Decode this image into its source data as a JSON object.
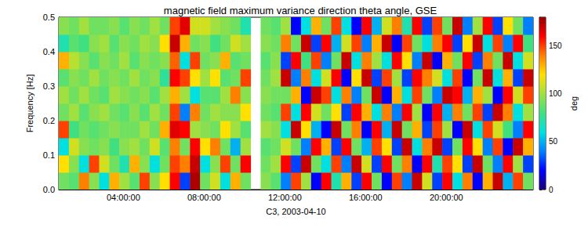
{
  "chart_data": {
    "type": "heatmap",
    "title": "magnetic field maximum variance direction theta angle, GSE",
    "x_label": "C3, 2003-04-10",
    "y_label": "Frequency [Hz]",
    "xlim": [
      0.8,
      24.3
    ],
    "xticks": [
      {
        "value": 4,
        "label": "04:00:00"
      },
      {
        "value": 8,
        "label": "08:00:00"
      },
      {
        "value": 12,
        "label": "12:00:00"
      },
      {
        "value": 16,
        "label": "16:00:00"
      },
      {
        "value": 20,
        "label": "20:00:00"
      }
    ],
    "ylim": [
      0,
      0.5
    ],
    "yticks": [
      {
        "value": 0,
        "label": "0.0"
      },
      0.1,
      0.2,
      0.3,
      0.4,
      0.5
    ],
    "x": [
      1.05,
      1.55,
      2.05,
      2.55,
      3.05,
      3.55,
      4.05,
      4.55,
      5.05,
      5.55,
      6.05,
      6.55,
      7.05,
      7.55,
      8.05,
      8.55,
      9.05,
      9.55,
      10.05,
      10.55,
      11.05,
      11.55,
      12.05,
      12.55,
      13.05,
      13.55,
      14.05,
      14.55,
      15.05,
      15.55,
      16.05,
      16.55,
      17.05,
      17.55,
      18.05,
      18.55,
      19.05,
      19.55,
      20.05,
      20.55,
      21.05,
      21.55,
      22.05,
      22.55,
      23.05,
      23.55,
      24.05
    ],
    "y": [
      0.025,
      0.075,
      0.125,
      0.175,
      0.225,
      0.275,
      0.325,
      0.375,
      0.425,
      0.475
    ],
    "values": [
      [
        90,
        120,
        60,
        150,
        90,
        100,
        85,
        130,
        70,
        95
      ],
      [
        85,
        95,
        110,
        80,
        100,
        90,
        95,
        105,
        85,
        90
      ],
      [
        140,
        60,
        95,
        90,
        85,
        100,
        90,
        95,
        80,
        100
      ],
      [
        95,
        150,
        90,
        85,
        95,
        90,
        100,
        85,
        95,
        90
      ],
      [
        60,
        110,
        95,
        90,
        100,
        85,
        90,
        95,
        100,
        90
      ],
      [
        130,
        90,
        80,
        95,
        90,
        100,
        95,
        90,
        85,
        95
      ],
      [
        100,
        70,
        95,
        90,
        85,
        95,
        90,
        100,
        95,
        85
      ],
      [
        85,
        130,
        100,
        90,
        95,
        90,
        100,
        85,
        90,
        95
      ],
      [
        150,
        95,
        90,
        100,
        85,
        95,
        90,
        95,
        100,
        90
      ],
      [
        95,
        60,
        110,
        90,
        100,
        85,
        95,
        90,
        95,
        100
      ],
      [
        120,
        90,
        85,
        130,
        90,
        100,
        75,
        95,
        120,
        90
      ],
      [
        160,
        150,
        140,
        165,
        150,
        130,
        160,
        145,
        170,
        150
      ],
      [
        30,
        140,
        90,
        160,
        40,
        100,
        150,
        60,
        130,
        165
      ],
      [
        175,
        170,
        160,
        100,
        140,
        60,
        120,
        150,
        90,
        110
      ],
      [
        90,
        60,
        120,
        95,
        90,
        85,
        100,
        90,
        95,
        110
      ],
      [
        110,
        95,
        140,
        90,
        100,
        85,
        120,
        95,
        80,
        100
      ],
      [
        60,
        150,
        90,
        120,
        95,
        100,
        85,
        130,
        90,
        95
      ],
      [
        130,
        90,
        50,
        100,
        95,
        140,
        90,
        85,
        110,
        90
      ],
      [
        90,
        160,
        100,
        85,
        120,
        95,
        150,
        90,
        100,
        70
      ],
      [
        null,
        null,
        null,
        null,
        null,
        null,
        null,
        null,
        null,
        null
      ],
      [
        95,
        90,
        85,
        100,
        90,
        95,
        90,
        85,
        95,
        90
      ],
      [
        85,
        100,
        90,
        95,
        85,
        90,
        100,
        95,
        90,
        85
      ],
      [
        40,
        160,
        110,
        60,
        150,
        90,
        170,
        30,
        140,
        100
      ],
      [
        150,
        30,
        90,
        170,
        60,
        130,
        40,
        160,
        90,
        20
      ],
      [
        100,
        170,
        40,
        120,
        160,
        20,
        140,
        80,
        170,
        60
      ],
      [
        20,
        90,
        160,
        50,
        110,
        170,
        60,
        150,
        30,
        130
      ],
      [
        160,
        60,
        130,
        20,
        90,
        150,
        110,
        40,
        160,
        90
      ],
      [
        70,
        150,
        30,
        170,
        120,
        60,
        160,
        90,
        50,
        150
      ],
      [
        130,
        40,
        160,
        90,
        30,
        140,
        20,
        170,
        110,
        60
      ],
      [
        30,
        170,
        90,
        140,
        160,
        40,
        120,
        60,
        150,
        20
      ],
      [
        160,
        110,
        50,
        20,
        130,
        90,
        170,
        140,
        40,
        160
      ],
      [
        90,
        30,
        150,
        160,
        60,
        170,
        30,
        100,
        130,
        50
      ],
      [
        20,
        160,
        120,
        50,
        140,
        20,
        150,
        60,
        170,
        110
      ],
      [
        150,
        90,
        30,
        170,
        40,
        130,
        100,
        160,
        20,
        140
      ],
      [
        40,
        140,
        170,
        90,
        160,
        60,
        30,
        120,
        150,
        70
      ],
      [
        170,
        20,
        60,
        130,
        100,
        150,
        160,
        40,
        90,
        160
      ],
      [
        110,
        160,
        140,
        30,
        20,
        90,
        140,
        170,
        60,
        30
      ],
      [
        30,
        70,
        170,
        150,
        160,
        40,
        110,
        20,
        140,
        150
      ],
      [
        160,
        150,
        30,
        100,
        50,
        170,
        60,
        130,
        160,
        90
      ],
      [
        60,
        120,
        90,
        20,
        140,
        160,
        150,
        90,
        30,
        170
      ],
      [
        140,
        30,
        160,
        170,
        90,
        50,
        20,
        160,
        120,
        40
      ],
      [
        20,
        170,
        120,
        60,
        150,
        130,
        90,
        30,
        170,
        100
      ],
      [
        130,
        90,
        40,
        150,
        30,
        100,
        170,
        140,
        60,
        160
      ],
      [
        170,
        40,
        150,
        110,
        170,
        20,
        60,
        90,
        150,
        30
      ],
      [
        50,
        160,
        20,
        80,
        140,
        160,
        130,
        170,
        40,
        120
      ],
      [
        150,
        100,
        170,
        40,
        60,
        110,
        30,
        60,
        160,
        90
      ],
      [
        90,
        30,
        130,
        160,
        100,
        150,
        170,
        110,
        80,
        40
      ]
    ],
    "colorbar": {
      "range": [
        0,
        180
      ],
      "ticks": [
        0,
        50,
        100,
        150
      ],
      "label": "deg"
    }
  }
}
